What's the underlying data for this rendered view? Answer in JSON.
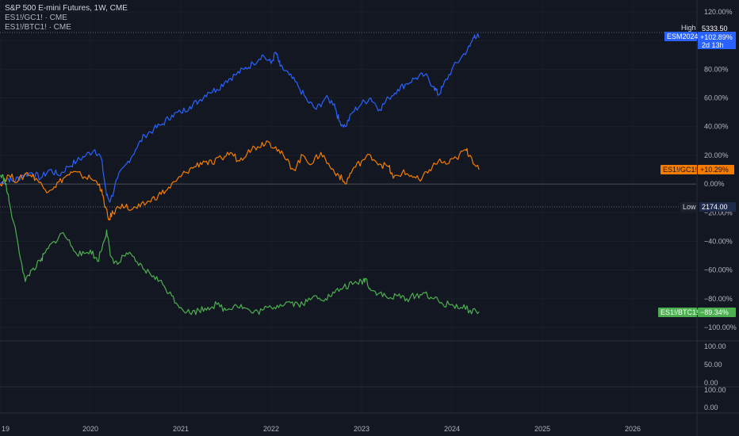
{
  "legend": {
    "main": "S&P 500 E-mini Futures, 1W, CME",
    "s2": "ES1!/GC1! · CME",
    "s3": "ES1!/BTC1! · CME"
  },
  "colors": {
    "background": "#131722",
    "es": "#2962ff",
    "gc": "#f57c00",
    "btc": "#4caf50",
    "grid": "#2a2e39",
    "text": "#b2b5be"
  },
  "markers": {
    "high_label": "High",
    "high_value": "5333.50",
    "low_label": "Low",
    "low_value": "2174.00",
    "es_tag": "ESM2024",
    "es_value": "+102.89%",
    "es_countdown": "2d 13h",
    "gc_tag": "ES1!/GC1!",
    "gc_value": "+10.29%",
    "btc_tag": "ES1!/BTC1!",
    "btc_value": "−89.34%"
  },
  "chart_data": {
    "type": "line",
    "x_labels": [
      "19",
      "2020",
      "2021",
      "2022",
      "2023",
      "2024",
      "2025",
      "2026"
    ],
    "y_ticks": [
      "120.00%",
      "100.00%",
      "80.00%",
      "60.00%",
      "40.00%",
      "20.00%",
      "0.00%",
      "−20.00%",
      "−40.00%",
      "−60.00%",
      "−80.00%",
      "−100.00%"
    ],
    "ylim": [
      -110,
      130
    ],
    "xlim": [
      2019.0,
      2026.9
    ],
    "pane2_ticks": [
      "100.00",
      "50.00",
      "0.00"
    ],
    "pane3_ticks": [
      "100.00",
      "0.00"
    ],
    "series": [
      {
        "name": "ESM2024",
        "points": [
          [
            2019.0,
            0
          ],
          [
            2019.08,
            4
          ],
          [
            2019.15,
            2
          ],
          [
            2019.25,
            6
          ],
          [
            2019.35,
            8
          ],
          [
            2019.45,
            4
          ],
          [
            2019.55,
            10
          ],
          [
            2019.65,
            6
          ],
          [
            2019.75,
            12
          ],
          [
            2019.85,
            16
          ],
          [
            2019.95,
            20
          ],
          [
            2020.05,
            24
          ],
          [
            2020.12,
            18
          ],
          [
            2020.18,
            -8
          ],
          [
            2020.22,
            -12
          ],
          [
            2020.3,
            4
          ],
          [
            2020.4,
            14
          ],
          [
            2020.5,
            24
          ],
          [
            2020.6,
            34
          ],
          [
            2020.7,
            38
          ],
          [
            2020.8,
            42
          ],
          [
            2020.9,
            48
          ],
          [
            2021.0,
            50
          ],
          [
            2021.1,
            54
          ],
          [
            2021.2,
            58
          ],
          [
            2021.3,
            64
          ],
          [
            2021.4,
            66
          ],
          [
            2021.5,
            72
          ],
          [
            2021.6,
            76
          ],
          [
            2021.7,
            80
          ],
          [
            2021.8,
            84
          ],
          [
            2021.9,
            90
          ],
          [
            2022.0,
            84
          ],
          [
            2022.05,
            92
          ],
          [
            2022.1,
            82
          ],
          [
            2022.2,
            76
          ],
          [
            2022.3,
            68
          ],
          [
            2022.4,
            58
          ],
          [
            2022.5,
            52
          ],
          [
            2022.6,
            60
          ],
          [
            2022.7,
            56
          ],
          [
            2022.75,
            44
          ],
          [
            2022.82,
            40
          ],
          [
            2022.9,
            50
          ],
          [
            2023.0,
            56
          ],
          [
            2023.1,
            60
          ],
          [
            2023.2,
            52
          ],
          [
            2023.3,
            60
          ],
          [
            2023.4,
            66
          ],
          [
            2023.5,
            70
          ],
          [
            2023.6,
            74
          ],
          [
            2023.7,
            76
          ],
          [
            2023.8,
            68
          ],
          [
            2023.85,
            62
          ],
          [
            2023.9,
            68
          ],
          [
            2024.0,
            80
          ],
          [
            2024.1,
            88
          ],
          [
            2024.2,
            96
          ],
          [
            2024.25,
            104
          ],
          [
            2024.3,
            102
          ]
        ]
      },
      {
        "name": "ES1!/GC1!",
        "points": [
          [
            2019.0,
            0
          ],
          [
            2019.1,
            6
          ],
          [
            2019.2,
            2
          ],
          [
            2019.3,
            8
          ],
          [
            2019.4,
            4
          ],
          [
            2019.5,
            -4
          ],
          [
            2019.6,
            -2
          ],
          [
            2019.7,
            4
          ],
          [
            2019.8,
            8
          ],
          [
            2019.9,
            6
          ],
          [
            2020.0,
            4
          ],
          [
            2020.1,
            0
          ],
          [
            2020.15,
            -12
          ],
          [
            2020.2,
            -25
          ],
          [
            2020.25,
            -20
          ],
          [
            2020.35,
            -14
          ],
          [
            2020.45,
            -18
          ],
          [
            2020.55,
            -16
          ],
          [
            2020.65,
            -12
          ],
          [
            2020.75,
            -8
          ],
          [
            2020.85,
            -4
          ],
          [
            2020.95,
            2
          ],
          [
            2021.05,
            8
          ],
          [
            2021.15,
            12
          ],
          [
            2021.25,
            16
          ],
          [
            2021.35,
            14
          ],
          [
            2021.45,
            18
          ],
          [
            2021.55,
            22
          ],
          [
            2021.65,
            16
          ],
          [
            2021.75,
            24
          ],
          [
            2021.85,
            26
          ],
          [
            2021.95,
            30
          ],
          [
            2022.05,
            26
          ],
          [
            2022.15,
            18
          ],
          [
            2022.25,
            10
          ],
          [
            2022.35,
            20
          ],
          [
            2022.45,
            14
          ],
          [
            2022.55,
            22
          ],
          [
            2022.65,
            12
          ],
          [
            2022.75,
            6
          ],
          [
            2022.82,
            0
          ],
          [
            2022.9,
            10
          ],
          [
            2023.0,
            16
          ],
          [
            2023.1,
            20
          ],
          [
            2023.2,
            14
          ],
          [
            2023.3,
            12
          ],
          [
            2023.35,
            4
          ],
          [
            2023.45,
            8
          ],
          [
            2023.55,
            6
          ],
          [
            2023.65,
            2
          ],
          [
            2023.75,
            10
          ],
          [
            2023.85,
            16
          ],
          [
            2023.95,
            14
          ],
          [
            2024.05,
            18
          ],
          [
            2024.15,
            24
          ],
          [
            2024.2,
            20
          ],
          [
            2024.3,
            10
          ]
        ]
      },
      {
        "name": "ES1!/BTC1!",
        "points": [
          [
            2019.0,
            6
          ],
          [
            2019.05,
            4
          ],
          [
            2019.1,
            -12
          ],
          [
            2019.2,
            -42
          ],
          [
            2019.28,
            -68
          ],
          [
            2019.35,
            -60
          ],
          [
            2019.45,
            -54
          ],
          [
            2019.5,
            -48
          ],
          [
            2019.6,
            -40
          ],
          [
            2019.7,
            -34
          ],
          [
            2019.8,
            -44
          ],
          [
            2019.9,
            -50
          ],
          [
            2020.0,
            -46
          ],
          [
            2020.08,
            -54
          ],
          [
            2020.15,
            -40
          ],
          [
            2020.18,
            -32
          ],
          [
            2020.22,
            -50
          ],
          [
            2020.3,
            -56
          ],
          [
            2020.4,
            -48
          ],
          [
            2020.5,
            -54
          ],
          [
            2020.6,
            -60
          ],
          [
            2020.7,
            -64
          ],
          [
            2020.8,
            -70
          ],
          [
            2020.9,
            -78
          ],
          [
            2021.0,
            -86
          ],
          [
            2021.1,
            -90
          ],
          [
            2021.2,
            -88
          ],
          [
            2021.3,
            -86
          ],
          [
            2021.4,
            -84
          ],
          [
            2021.5,
            -88
          ],
          [
            2021.6,
            -84
          ],
          [
            2021.7,
            -86
          ],
          [
            2021.8,
            -90
          ],
          [
            2021.9,
            -88
          ],
          [
            2022.0,
            -86
          ],
          [
            2022.1,
            -84
          ],
          [
            2022.2,
            -82
          ],
          [
            2022.3,
            -84
          ],
          [
            2022.4,
            -82
          ],
          [
            2022.5,
            -78
          ],
          [
            2022.6,
            -80
          ],
          [
            2022.7,
            -76
          ],
          [
            2022.8,
            -72
          ],
          [
            2022.9,
            -70
          ],
          [
            2023.0,
            -68
          ],
          [
            2023.05,
            -66
          ],
          [
            2023.1,
            -74
          ],
          [
            2023.2,
            -76
          ],
          [
            2023.3,
            -80
          ],
          [
            2023.4,
            -78
          ],
          [
            2023.5,
            -80
          ],
          [
            2023.6,
            -78
          ],
          [
            2023.7,
            -76
          ],
          [
            2023.8,
            -80
          ],
          [
            2023.9,
            -84
          ],
          [
            2024.0,
            -84
          ],
          [
            2024.1,
            -86
          ],
          [
            2024.2,
            -88
          ],
          [
            2024.3,
            -89
          ]
        ]
      }
    ]
  }
}
